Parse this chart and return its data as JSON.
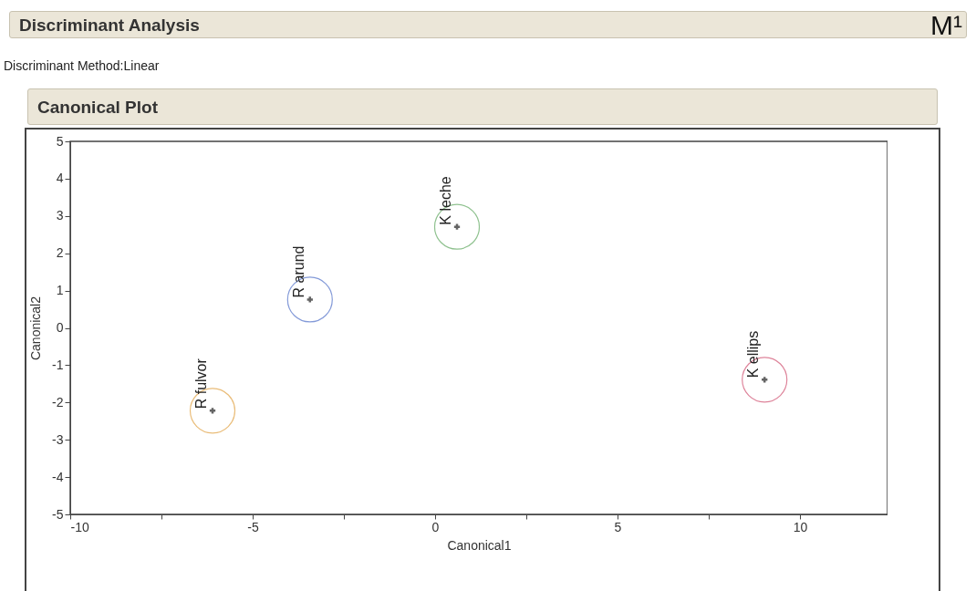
{
  "chart_data": {
    "type": "scatter",
    "title": "Discriminant Analysis",
    "subtitle": "Discriminant Method:Linear",
    "annotations": [
      "Canonical Plot",
      "M¹"
    ],
    "xlabel": "Canonical1",
    "ylabel": "Canonical2",
    "xlim": [
      -10,
      12.4
    ],
    "ylim": [
      -5,
      5
    ],
    "xticks": [
      -10,
      {
        "value": -7.5,
        "label": null
      },
      -5,
      {
        "value": -2.5,
        "label": null
      },
      0,
      {
        "value": 2.5,
        "label": null
      },
      5,
      {
        "value": 7.5,
        "label": null
      },
      10
    ],
    "yticks": [
      -5,
      -4,
      -3,
      -2,
      -1,
      0,
      1,
      2,
      3,
      4,
      5
    ],
    "grid": false,
    "legend": false,
    "marker": "circle",
    "series": [
      {
        "name": "R fulvor",
        "color": "#e0a040",
        "x": [
          -6.1
        ],
        "values": [
          -2.22
        ]
      },
      {
        "name": "R arund",
        "color": "#5070c8",
        "x": [
          -3.43
        ],
        "values": [
          0.76
        ]
      },
      {
        "name": "K leche",
        "color": "#60a860",
        "x": [
          0.6
        ],
        "values": [
          2.71
        ]
      },
      {
        "name": "K ellips",
        "color": "#d05070",
        "x": [
          9.03
        ],
        "values": [
          -1.39
        ]
      }
    ]
  }
}
